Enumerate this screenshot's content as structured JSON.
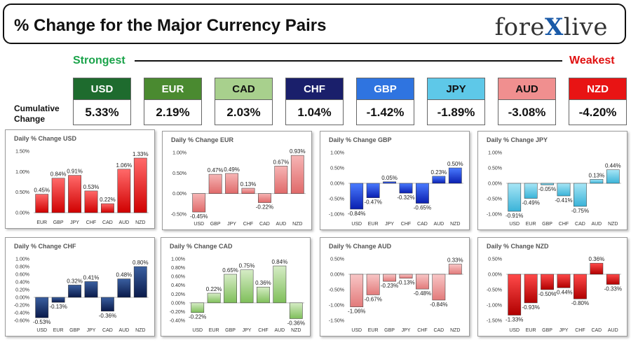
{
  "header": {
    "title": "% Change for the Major Currency Pairs",
    "logo_left": "fore",
    "logo_x": "X",
    "logo_right": "live"
  },
  "ranking": {
    "strongest": "Strongest",
    "weakest": "Weakest",
    "row_label_1": "Cumulative",
    "row_label_2": "Change"
  },
  "currencies": [
    {
      "code": "USD",
      "value": "5.33%",
      "color": "#1e6b2e"
    },
    {
      "code": "EUR",
      "value": "2.19%",
      "color": "#4a8a30"
    },
    {
      "code": "CAD",
      "value": "2.03%",
      "color": "#a8d08d"
    },
    {
      "code": "CHF",
      "value": "1.04%",
      "color": "#1a1f6b"
    },
    {
      "code": "GBP",
      "value": "-1.42%",
      "color": "#2f74e0"
    },
    {
      "code": "JPY",
      "value": "-1.89%",
      "color": "#5ec8e8"
    },
    {
      "code": "AUD",
      "value": "-3.08%",
      "color": "#f08f8f"
    },
    {
      "code": "NZD",
      "value": "-4.20%",
      "color": "#e81414"
    }
  ],
  "chart_data": [
    {
      "type": "bar",
      "title": "Daily % Change USD",
      "color": "red",
      "categories": [
        "EUR",
        "GBP",
        "JPY",
        "CHF",
        "CAD",
        "AUD",
        "NZD"
      ],
      "values": [
        0.45,
        0.84,
        0.91,
        0.53,
        0.22,
        1.06,
        1.33
      ],
      "labels": [
        "0.45%",
        "0.84%",
        "0.91%",
        "0.53%",
        "0.22%",
        "1.06%",
        "1.33%"
      ],
      "yticks": [
        "1.50%",
        "1.00%",
        "0.50%",
        "0.00%"
      ],
      "ylim": [
        0,
        1.5
      ]
    },
    {
      "type": "bar",
      "title": "Daily % Change EUR",
      "color": "pink",
      "categories": [
        "USD",
        "GBP",
        "JPY",
        "CHF",
        "CAD",
        "AUD",
        "NZD"
      ],
      "values": [
        -0.45,
        0.47,
        0.49,
        0.13,
        -0.22,
        0.67,
        0.93
      ],
      "labels": [
        "-0.45%",
        "0.47%",
        "0.49%",
        "0.13%",
        "-0.22%",
        "0.67%",
        "0.93%"
      ],
      "yticks": [
        "1.00%",
        "0.50%",
        "0.00%",
        "-0.50%"
      ],
      "ylim": [
        -0.5,
        1.0
      ]
    },
    {
      "type": "bar",
      "title": "Daily % Change GBP",
      "color": "blue",
      "categories": [
        "USD",
        "EUR",
        "JPY",
        "CHF",
        "CAD",
        "AUD",
        "NZD"
      ],
      "values": [
        -0.84,
        -0.47,
        0.05,
        -0.32,
        -0.65,
        0.23,
        0.5
      ],
      "labels": [
        "-0.84%",
        "-0.47%",
        "0.05%",
        "-0.32%",
        "-0.65%",
        "0.23%",
        "0.50%"
      ],
      "yticks": [
        "1.00%",
        "0.50%",
        "0.00%",
        "-0.50%",
        "-1.00%"
      ],
      "ylim": [
        -1.0,
        1.0
      ]
    },
    {
      "type": "bar",
      "title": "Daily % Change JPY",
      "color": "cyan",
      "categories": [
        "USD",
        "EUR",
        "GBP",
        "CHF",
        "CAD",
        "AUD",
        "NZD"
      ],
      "values": [
        -0.91,
        -0.49,
        -0.05,
        -0.41,
        -0.75,
        0.13,
        0.44
      ],
      "labels": [
        "-0.91%",
        "-0.49%",
        "-0.05%",
        "-0.41%",
        "-0.75%",
        "0.13%",
        "0.44%"
      ],
      "yticks": [
        "1.00%",
        "0.50%",
        "0.00%",
        "-0.50%",
        "-1.00%"
      ],
      "ylim": [
        -1.0,
        1.0
      ]
    },
    {
      "type": "bar",
      "title": "Daily % Change CHF",
      "color": "navy",
      "categories": [
        "USD",
        "EUR",
        "GBP",
        "JPY",
        "CAD",
        "AUD",
        "NZD"
      ],
      "values": [
        -0.53,
        -0.13,
        0.32,
        0.41,
        -0.36,
        0.48,
        0.8
      ],
      "labels": [
        "-0.53%",
        "-0.13%",
        "0.32%",
        "0.41%",
        "-0.36%",
        "0.48%",
        "0.80%"
      ],
      "yticks": [
        "1.00%",
        "0.80%",
        "0.60%",
        "0.40%",
        "0.20%",
        "0.00%",
        "-0.20%",
        "-0.40%",
        "-0.60%"
      ],
      "ylim": [
        -0.6,
        1.0
      ]
    },
    {
      "type": "bar",
      "title": "Daily % Change CAD",
      "color": "green",
      "categories": [
        "USD",
        "EUR",
        "GBP",
        "JPY",
        "CHF",
        "AUD",
        "NZD"
      ],
      "values": [
        -0.22,
        0.22,
        0.65,
        0.75,
        0.36,
        0.84,
        -0.36
      ],
      "labels": [
        "-0.22%",
        "0.22%",
        "0.65%",
        "0.75%",
        "0.36%",
        "0.84%",
        "-0.36%"
      ],
      "yticks": [
        "1.00%",
        "0.80%",
        "0.60%",
        "0.40%",
        "0.20%",
        "0.00%",
        "-0.20%",
        "-0.40%"
      ],
      "ylim": [
        -0.4,
        1.0
      ]
    },
    {
      "type": "bar",
      "title": "Daily % Change AUD",
      "color": "salmon",
      "categories": [
        "USD",
        "EUR",
        "GBP",
        "JPY",
        "CHF",
        "CAD",
        "NZD"
      ],
      "values": [
        -1.06,
        -0.67,
        -0.23,
        -0.13,
        -0.48,
        -0.84,
        0.33
      ],
      "labels": [
        "-1.06%",
        "-0.67%",
        "-0.23%",
        "-0.13%",
        "-0.48%",
        "-0.84%",
        "0.33%"
      ],
      "yticks": [
        "0.50%",
        "0.00%",
        "-0.50%",
        "-1.00%",
        "-1.50%"
      ],
      "ylim": [
        -1.5,
        0.5
      ]
    },
    {
      "type": "bar",
      "title": "Daily % Change NZD",
      "color": "darkred",
      "categories": [
        "USD",
        "EUR",
        "GBP",
        "JPY",
        "CHF",
        "CAD",
        "AUD"
      ],
      "values": [
        -1.33,
        -0.93,
        -0.5,
        -0.44,
        -0.8,
        0.36,
        -0.33
      ],
      "labels": [
        "-1.33%",
        "-0.93%",
        "-0.50%",
        "-0.44%",
        "-0.80%",
        "0.36%",
        "-0.33%"
      ],
      "yticks": [
        "0.50%",
        "0.00%",
        "-0.50%",
        "-1.00%",
        "-1.50%"
      ],
      "ylim": [
        -1.5,
        0.5
      ]
    }
  ],
  "bar_colors": {
    "red": [
      "#ff6a6a",
      "#d00000"
    ],
    "pink": [
      "#f6b5b5",
      "#e06a6a"
    ],
    "blue": [
      "#4a7bff",
      "#0a1fb0"
    ],
    "cyan": [
      "#a8e6f6",
      "#3ab3d8"
    ],
    "navy": [
      "#3a5fa0",
      "#0a1a4a"
    ],
    "green": [
      "#d6ecc6",
      "#7fbf5a"
    ],
    "salmon": [
      "#f8c6c6",
      "#e27a7a"
    ],
    "darkred": [
      "#ff4a4a",
      "#b00000"
    ]
  }
}
